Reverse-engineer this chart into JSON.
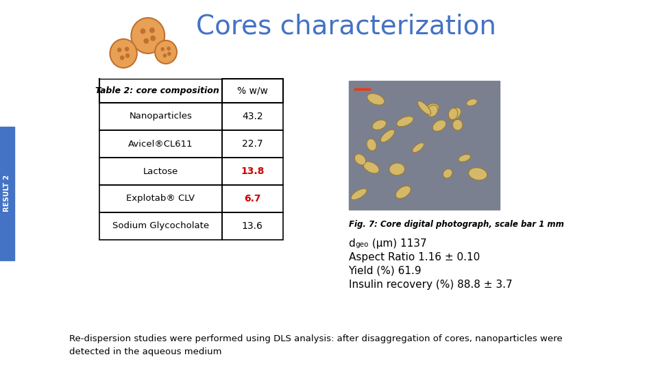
{
  "title": "Cores characterization",
  "title_color": "#4472C4",
  "title_fontsize": 28,
  "table_header": [
    "Table 2: core composition",
    "% w/w"
  ],
  "table_rows": [
    [
      "Nanoparticles",
      "43.2",
      "black"
    ],
    [
      "Avicel®CL611",
      "22.7",
      "black"
    ],
    [
      "Lactose",
      "13.8",
      "#CC0000"
    ],
    [
      "Explotab® CLV",
      "6.7",
      "#CC0000"
    ],
    [
      "Sodium Glycocholate",
      "13.6",
      "black"
    ]
  ],
  "fig_caption": "Fig. 7: Core digital photograph, scale bar 1 mm",
  "stats_lines": [
    "Aspect Ratio 1.16 ± 0.10",
    "Yield (%) 61.9",
    "Insulin recovery (%) 88.8 ± 3.7"
  ],
  "footer_text": "Re-dispersion studies were performed using DLS analysis: after disaggregation of cores, nanoparticles were\ndetected in the aqueous medium",
  "result_label": "RESULT 2",
  "sidebar_color": "#4472C4",
  "bg_color": "#FFFFFF",
  "circle_props": [
    [
      230,
      52,
      26,
      "#E8A055",
      "#C07030"
    ],
    [
      192,
      78,
      21,
      "#E8A055",
      "#C07030"
    ],
    [
      258,
      76,
      17,
      "#E8A055",
      "#C07030"
    ]
  ]
}
